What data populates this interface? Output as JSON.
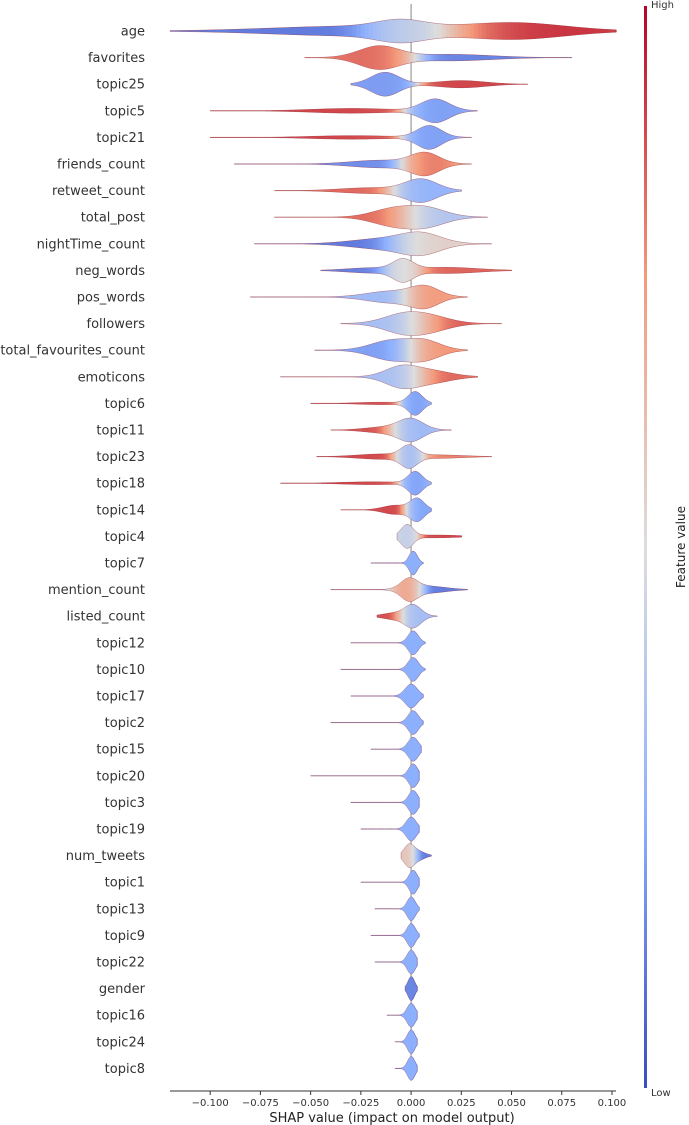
{
  "chart_data": {
    "type": "violin",
    "title": "",
    "xlabel": "SHAP value (impact on model output)",
    "ylabel": "",
    "xlim": [
      -0.12,
      0.102
    ],
    "xticks": [
      -0.1,
      -0.075,
      -0.05,
      -0.025,
      0.0,
      0.025,
      0.05,
      0.075,
      0.1
    ],
    "xtick_labels": [
      "−0.100",
      "−0.075",
      "−0.050",
      "−0.025",
      "0.000",
      "0.025",
      "0.050",
      "0.075",
      "0.100"
    ],
    "colorbar": {
      "title": "Feature value",
      "high_label": "High",
      "low_label": "Low",
      "low_color": "#3b4cc0",
      "mid_color": "#dddddd",
      "high_color": "#b40426"
    },
    "features": [
      {
        "name": "age",
        "min": -0.12,
        "max": 0.102,
        "modes": [
          {
            "c": -0.03,
            "w": 0.04,
            "h": 0.6,
            "v": 0.1
          },
          {
            "c": -0.005,
            "w": 0.012,
            "h": 0.95,
            "v": 0.5
          },
          {
            "c": 0.052,
            "w": 0.025,
            "h": 1.0,
            "v": 0.95
          }
        ]
      },
      {
        "name": "favorites",
        "min": -0.053,
        "max": 0.08,
        "modes": [
          {
            "c": -0.016,
            "w": 0.01,
            "h": 1.0,
            "v": 0.85
          },
          {
            "c": 0.02,
            "w": 0.02,
            "h": 0.28,
            "v": 0.12
          }
        ]
      },
      {
        "name": "topic25",
        "min": -0.03,
        "max": 0.058,
        "modes": [
          {
            "c": -0.013,
            "w": 0.007,
            "h": 1.0,
            "v": 0.2
          },
          {
            "c": 0.025,
            "w": 0.012,
            "h": 0.3,
            "v": 0.9
          }
        ]
      },
      {
        "name": "topic5",
        "min": -0.1,
        "max": 0.033,
        "modes": [
          {
            "c": -0.03,
            "w": 0.02,
            "h": 0.2,
            "v": 0.9
          },
          {
            "c": 0.012,
            "w": 0.007,
            "h": 1.0,
            "v": 0.2
          }
        ]
      },
      {
        "name": "topic21",
        "min": -0.1,
        "max": 0.03,
        "modes": [
          {
            "c": -0.03,
            "w": 0.02,
            "h": 0.15,
            "v": 0.9
          },
          {
            "c": 0.009,
            "w": 0.006,
            "h": 1.0,
            "v": 0.2
          }
        ]
      },
      {
        "name": "friends_count",
        "min": -0.088,
        "max": 0.03,
        "modes": [
          {
            "c": -0.015,
            "w": 0.015,
            "h": 0.35,
            "v": 0.15
          },
          {
            "c": 0.007,
            "w": 0.007,
            "h": 1.0,
            "v": 0.85
          }
        ]
      },
      {
        "name": "retweet_count",
        "min": -0.068,
        "max": 0.025,
        "modes": [
          {
            "c": -0.02,
            "w": 0.015,
            "h": 0.25,
            "v": 0.85
          },
          {
            "c": 0.005,
            "w": 0.008,
            "h": 1.0,
            "v": 0.25
          }
        ]
      },
      {
        "name": "total_post",
        "min": -0.068,
        "max": 0.038,
        "modes": [
          {
            "c": -0.01,
            "w": 0.01,
            "h": 0.8,
            "v": 0.85
          },
          {
            "c": 0.007,
            "w": 0.01,
            "h": 1.0,
            "v": 0.35
          }
        ]
      },
      {
        "name": "nightTime_count",
        "min": -0.078,
        "max": 0.04,
        "modes": [
          {
            "c": -0.015,
            "w": 0.015,
            "h": 0.5,
            "v": 0.1
          },
          {
            "c": 0.005,
            "w": 0.01,
            "h": 1.0,
            "v": 0.6
          }
        ]
      },
      {
        "name": "neg_words",
        "min": -0.045,
        "max": 0.05,
        "modes": [
          {
            "c": -0.004,
            "w": 0.005,
            "h": 1.0,
            "v": 0.5
          },
          {
            "c": 0.018,
            "w": 0.015,
            "h": 0.3,
            "v": 0.85
          },
          {
            "c": -0.02,
            "w": 0.012,
            "h": 0.25,
            "v": 0.1
          }
        ]
      },
      {
        "name": "pos_words",
        "min": -0.08,
        "max": 0.028,
        "modes": [
          {
            "c": -0.01,
            "w": 0.012,
            "h": 0.6,
            "v": 0.3
          },
          {
            "c": 0.007,
            "w": 0.007,
            "h": 1.0,
            "v": 0.8
          }
        ]
      },
      {
        "name": "followers",
        "min": -0.035,
        "max": 0.045,
        "modes": [
          {
            "c": -0.004,
            "w": 0.01,
            "h": 1.0,
            "v": 0.3
          },
          {
            "c": 0.01,
            "w": 0.01,
            "h": 0.7,
            "v": 0.9
          }
        ]
      },
      {
        "name": "total_favourites_count",
        "min": -0.048,
        "max": 0.028,
        "modes": [
          {
            "c": -0.01,
            "w": 0.01,
            "h": 1.0,
            "v": 0.2
          },
          {
            "c": 0.007,
            "w": 0.008,
            "h": 0.9,
            "v": 0.8
          }
        ]
      },
      {
        "name": "emoticons",
        "min": -0.065,
        "max": 0.033,
        "modes": [
          {
            "c": -0.005,
            "w": 0.008,
            "h": 1.0,
            "v": 0.3
          },
          {
            "c": 0.01,
            "w": 0.01,
            "h": 0.6,
            "v": 0.85
          }
        ]
      },
      {
        "name": "topic6",
        "min": -0.05,
        "max": 0.01,
        "modes": [
          {
            "c": 0.002,
            "w": 0.0035,
            "h": 1.0,
            "v": 0.2
          },
          {
            "c": -0.015,
            "w": 0.012,
            "h": 0.1,
            "v": 0.9
          }
        ]
      },
      {
        "name": "topic11",
        "min": -0.04,
        "max": 0.02,
        "modes": [
          {
            "c": 0.0,
            "w": 0.006,
            "h": 1.0,
            "v": 0.25
          },
          {
            "c": -0.012,
            "w": 0.01,
            "h": 0.3,
            "v": 0.9
          }
        ]
      },
      {
        "name": "topic23",
        "min": -0.047,
        "max": 0.04,
        "modes": [
          {
            "c": -0.001,
            "w": 0.004,
            "h": 1.0,
            "v": 0.25
          },
          {
            "c": -0.015,
            "w": 0.012,
            "h": 0.25,
            "v": 0.9
          },
          {
            "c": 0.015,
            "w": 0.012,
            "h": 0.15,
            "v": 0.8
          }
        ]
      },
      {
        "name": "topic18",
        "min": -0.065,
        "max": 0.01,
        "modes": [
          {
            "c": 0.002,
            "w": 0.0035,
            "h": 1.0,
            "v": 0.2
          },
          {
            "c": -0.02,
            "w": 0.015,
            "h": 0.12,
            "v": 0.9
          }
        ]
      },
      {
        "name": "topic14",
        "min": -0.035,
        "max": 0.01,
        "modes": [
          {
            "c": 0.003,
            "w": 0.0035,
            "h": 1.0,
            "v": 0.2
          },
          {
            "c": -0.008,
            "w": 0.006,
            "h": 0.4,
            "v": 0.9
          }
        ]
      },
      {
        "name": "topic4",
        "min": -0.007,
        "max": 0.025,
        "modes": [
          {
            "c": -0.002,
            "w": 0.003,
            "h": 1.0,
            "v": 0.4
          },
          {
            "c": 0.012,
            "w": 0.012,
            "h": 0.12,
            "v": 0.9
          }
        ]
      },
      {
        "name": "topic7",
        "min": -0.02,
        "max": 0.006,
        "modes": [
          {
            "c": 0.001,
            "w": 0.002,
            "h": 1.0,
            "v": 0.25
          }
        ]
      },
      {
        "name": "mention_count",
        "min": -0.04,
        "max": 0.028,
        "modes": [
          {
            "c": -0.001,
            "w": 0.004,
            "h": 1.0,
            "v": 0.8
          },
          {
            "c": 0.008,
            "w": 0.009,
            "h": 0.35,
            "v": 0.1
          }
        ]
      },
      {
        "name": "listed_count",
        "min": -0.017,
        "max": 0.013,
        "modes": [
          {
            "c": 0.001,
            "w": 0.004,
            "h": 1.0,
            "v": 0.3
          },
          {
            "c": -0.008,
            "w": 0.006,
            "h": 0.3,
            "v": 0.9
          }
        ]
      },
      {
        "name": "topic12",
        "min": -0.03,
        "max": 0.007,
        "modes": [
          {
            "c": 0.001,
            "w": 0.0025,
            "h": 1.0,
            "v": 0.25
          }
        ]
      },
      {
        "name": "topic10",
        "min": -0.035,
        "max": 0.007,
        "modes": [
          {
            "c": 0.001,
            "w": 0.0025,
            "h": 1.0,
            "v": 0.25
          }
        ]
      },
      {
        "name": "topic17",
        "min": -0.03,
        "max": 0.006,
        "modes": [
          {
            "c": 0.0,
            "w": 0.003,
            "h": 1.0,
            "v": 0.25
          }
        ]
      },
      {
        "name": "topic2",
        "min": -0.04,
        "max": 0.006,
        "modes": [
          {
            "c": 0.001,
            "w": 0.0025,
            "h": 1.0,
            "v": 0.25
          }
        ]
      },
      {
        "name": "topic15",
        "min": -0.02,
        "max": 0.005,
        "modes": [
          {
            "c": 0.001,
            "w": 0.0025,
            "h": 1.0,
            "v": 0.25
          }
        ]
      },
      {
        "name": "topic20",
        "min": -0.05,
        "max": 0.004,
        "modes": [
          {
            "c": 0.001,
            "w": 0.0022,
            "h": 1.0,
            "v": 0.25
          }
        ]
      },
      {
        "name": "topic3",
        "min": -0.03,
        "max": 0.004,
        "modes": [
          {
            "c": 0.001,
            "w": 0.0022,
            "h": 1.0,
            "v": 0.25
          }
        ]
      },
      {
        "name": "topic19",
        "min": -0.025,
        "max": 0.004,
        "modes": [
          {
            "c": 0.0,
            "w": 0.0025,
            "h": 1.0,
            "v": 0.25
          }
        ]
      },
      {
        "name": "num_tweets",
        "min": -0.005,
        "max": 0.01,
        "modes": [
          {
            "c": -0.001,
            "w": 0.0025,
            "h": 1.0,
            "v": 0.6
          },
          {
            "c": 0.004,
            "w": 0.003,
            "h": 0.35,
            "v": 0.1
          }
        ]
      },
      {
        "name": "topic1",
        "min": -0.025,
        "max": 0.004,
        "modes": [
          {
            "c": 0.001,
            "w": 0.002,
            "h": 1.0,
            "v": 0.25
          }
        ]
      },
      {
        "name": "topic13",
        "min": -0.018,
        "max": 0.004,
        "modes": [
          {
            "c": 0.0,
            "w": 0.002,
            "h": 1.0,
            "v": 0.25
          }
        ]
      },
      {
        "name": "topic9",
        "min": -0.02,
        "max": 0.004,
        "modes": [
          {
            "c": 0.0,
            "w": 0.002,
            "h": 1.0,
            "v": 0.25
          }
        ]
      },
      {
        "name": "topic22",
        "min": -0.018,
        "max": 0.003,
        "modes": [
          {
            "c": 0.0,
            "w": 0.002,
            "h": 1.0,
            "v": 0.25
          }
        ]
      },
      {
        "name": "gender",
        "min": -0.003,
        "max": 0.003,
        "modes": [
          {
            "c": 0.0,
            "w": 0.0016,
            "h": 1.0,
            "v": 0.15
          }
        ]
      },
      {
        "name": "topic16",
        "min": -0.012,
        "max": 0.003,
        "modes": [
          {
            "c": 0.0,
            "w": 0.002,
            "h": 1.0,
            "v": 0.25
          }
        ]
      },
      {
        "name": "topic24",
        "min": -0.008,
        "max": 0.003,
        "modes": [
          {
            "c": 0.0,
            "w": 0.0018,
            "h": 1.0,
            "v": 0.25
          }
        ]
      },
      {
        "name": "topic8",
        "min": -0.008,
        "max": 0.003,
        "modes": [
          {
            "c": 0.0,
            "w": 0.0018,
            "h": 1.0,
            "v": 0.25
          }
        ]
      }
    ]
  }
}
